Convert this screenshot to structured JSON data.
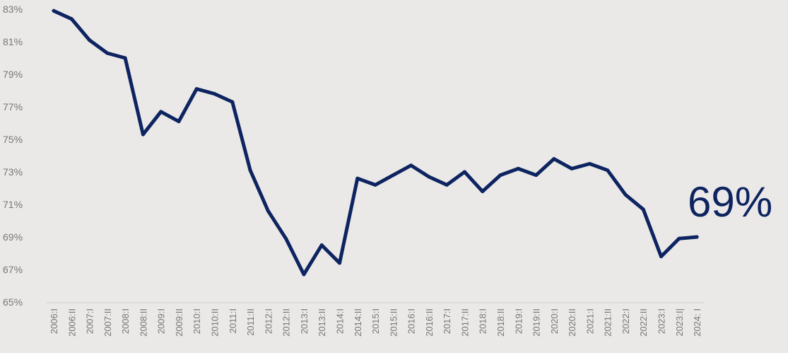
{
  "chart_data": {
    "type": "line",
    "title": "",
    "xlabel": "",
    "ylabel": "",
    "ylim": [
      65,
      83
    ],
    "yticks": [
      "65%",
      "67%",
      "69%",
      "71%",
      "73%",
      "75%",
      "77%",
      "79%",
      "81%",
      "83%"
    ],
    "grid": false,
    "x": [
      "2006:I",
      "2006:II",
      "2007:I",
      "2007:II",
      "2008:I",
      "2008:II",
      "2009:I",
      "2009:II",
      "2010:I",
      "2010:II",
      "2011:I",
      "2011:II",
      "2012:I",
      "2012:II",
      "2013:I",
      "2013:II",
      "2014:I",
      "2014:II",
      "2015:I",
      "2015:II",
      "2016:I",
      "2016:II",
      "2017:I",
      "2017:II",
      "2018:I",
      "2018:II",
      "2019:I",
      "2019:II",
      "2020:I",
      "2020:II",
      "2021:I",
      "2021:II",
      "2022:I",
      "2022:II",
      "2023:I",
      "2023:I|",
      "2024: I"
    ],
    "series": [
      {
        "values": [
          82.9,
          82.4,
          81.1,
          80.3,
          80.0,
          75.3,
          76.7,
          76.1,
          78.1,
          77.8,
          77.3,
          73.1,
          70.6,
          68.9,
          66.7,
          68.5,
          67.4,
          72.6,
          72.2,
          72.8,
          73.4,
          72.7,
          72.2,
          73.0,
          71.8,
          72.8,
          73.2,
          72.8,
          73.8,
          73.2,
          73.5,
          73.1,
          71.6,
          70.7,
          67.8,
          68.9,
          69.0
        ],
        "color": "#0d2461"
      }
    ],
    "end_label": "69%"
  }
}
